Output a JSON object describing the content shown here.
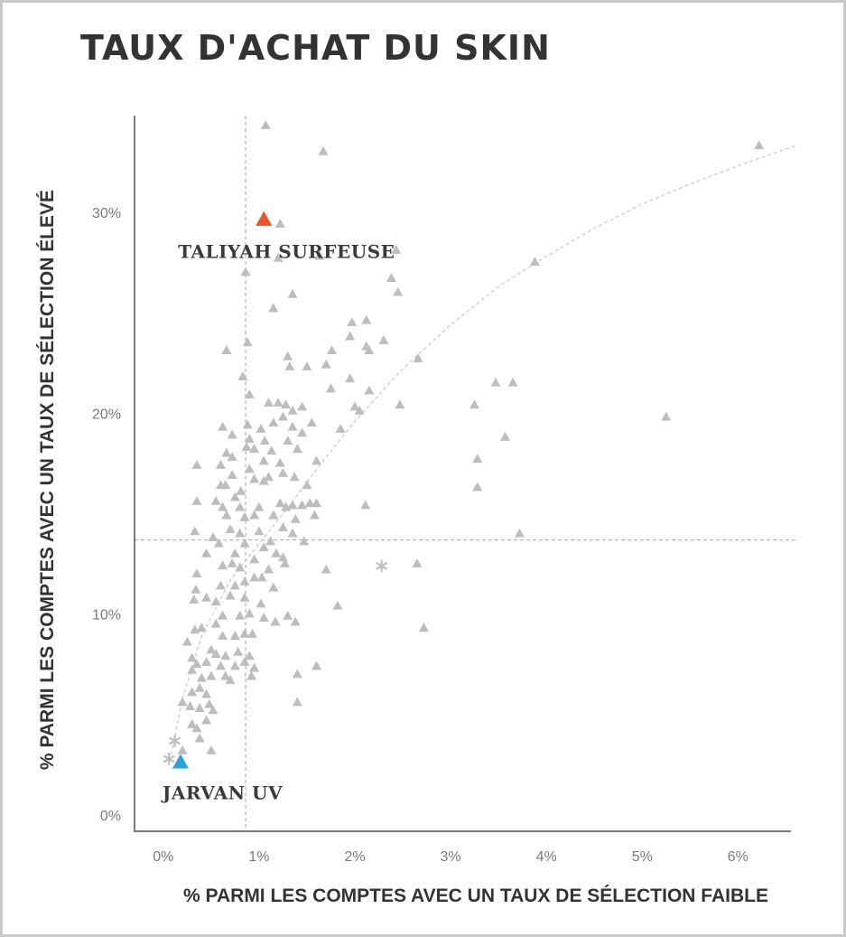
{
  "chart_data": {
    "type": "scatter",
    "title": "TAUX D'ACHAT DU SKIN",
    "xlabel": "% PARMI LES COMPTES AVEC UN TAUX DE SÉLECTION FAIBLE",
    "ylabel": "% PARMI LES COMPTES AVEC UN TAUX DE SÉLECTION ÉLEVÉ",
    "xlim": [
      -0.3,
      6.6
    ],
    "ylim": [
      -0.8,
      34.8
    ],
    "x_ticks": [
      0,
      1,
      2,
      3,
      4,
      5,
      6
    ],
    "x_tick_labels": [
      "0%",
      "1%",
      "2%",
      "3%",
      "4%",
      "5%",
      "6%"
    ],
    "y_ticks": [
      0,
      10,
      20,
      30
    ],
    "y_tick_labels": [
      "0%",
      "10%",
      "20%",
      "30%"
    ],
    "reference_lines": {
      "x": 0.86,
      "y": 13.7
    },
    "trend_curve": {
      "style": "dashed",
      "color": "#cccccc",
      "points": [
        [
          0.07,
          2.7
        ],
        [
          0.2,
          5.8
        ],
        [
          0.4,
          8.9
        ],
        [
          0.7,
          11.7
        ],
        [
          1.0,
          13.5
        ],
        [
          1.3,
          15.3
        ],
        [
          1.6,
          17.2
        ],
        [
          2.0,
          19.6
        ],
        [
          2.5,
          22.2
        ],
        [
          3.0,
          24.4
        ],
        [
          3.5,
          26.3
        ],
        [
          4.0,
          27.8
        ],
        [
          4.5,
          29.2
        ],
        [
          5.0,
          30.4
        ],
        [
          5.5,
          31.4
        ],
        [
          6.0,
          32.3
        ],
        [
          6.6,
          33.3
        ]
      ]
    },
    "grid": false,
    "colors": {
      "points": "#bdbdbd",
      "highlight_high": "#e8562a",
      "highlight_low": "#29a3d6",
      "axis": "#7a7a7a",
      "reference": "#b5b5b5"
    },
    "series": [
      {
        "marker": "triangle",
        "points": [
          [
            1.07,
            34.3
          ],
          [
            1.67,
            33.0
          ],
          [
            6.22,
            33.3
          ],
          [
            1.22,
            29.4
          ],
          [
            1.2,
            27.7
          ],
          [
            1.63,
            27.8
          ],
          [
            2.43,
            28.1
          ],
          [
            3.88,
            27.5
          ],
          [
            0.86,
            27.0
          ],
          [
            2.38,
            26.7
          ],
          [
            2.45,
            26.0
          ],
          [
            1.35,
            25.9
          ],
          [
            1.15,
            25.2
          ],
          [
            1.97,
            24.5
          ],
          [
            2.12,
            24.6
          ],
          [
            1.95,
            23.8
          ],
          [
            2.3,
            23.6
          ],
          [
            0.66,
            23.1
          ],
          [
            1.76,
            23.1
          ],
          [
            2.12,
            23.3
          ],
          [
            2.15,
            23.1
          ],
          [
            0.88,
            23.5
          ],
          [
            1.3,
            22.8
          ],
          [
            1.7,
            22.4
          ],
          [
            1.32,
            22.3
          ],
          [
            1.5,
            22.3
          ],
          [
            2.66,
            22.7
          ],
          [
            0.83,
            21.8
          ],
          [
            1.95,
            21.7
          ],
          [
            1.75,
            21.2
          ],
          [
            3.47,
            21.5
          ],
          [
            3.65,
            21.5
          ],
          [
            2.15,
            21.1
          ],
          [
            0.9,
            20.9
          ],
          [
            1.1,
            20.5
          ],
          [
            1.2,
            20.5
          ],
          [
            1.28,
            20.4
          ],
          [
            1.35,
            20.1
          ],
          [
            1.45,
            20.3
          ],
          [
            1.25,
            19.8
          ],
          [
            2.0,
            20.3
          ],
          [
            2.05,
            20.1
          ],
          [
            2.47,
            20.4
          ],
          [
            3.25,
            20.4
          ],
          [
            5.25,
            19.8
          ],
          [
            1.15,
            19.5
          ],
          [
            1.55,
            19.5
          ],
          [
            0.62,
            19.3
          ],
          [
            0.88,
            19.4
          ],
          [
            1.02,
            19.2
          ],
          [
            1.35,
            19.3
          ],
          [
            1.45,
            19.0
          ],
          [
            1.85,
            19.2
          ],
          [
            0.72,
            18.9
          ],
          [
            0.9,
            18.7
          ],
          [
            1.06,
            18.6
          ],
          [
            1.3,
            18.6
          ],
          [
            3.57,
            18.8
          ],
          [
            0.87,
            18.3
          ],
          [
            0.95,
            18.2
          ],
          [
            1.13,
            18.1
          ],
          [
            1.4,
            18.2
          ],
          [
            0.66,
            18.0
          ],
          [
            0.72,
            17.8
          ],
          [
            1.22,
            17.5
          ],
          [
            1.05,
            17.6
          ],
          [
            3.28,
            17.7
          ],
          [
            0.6,
            17.4
          ],
          [
            1.6,
            17.6
          ],
          [
            0.9,
            17.2
          ],
          [
            1.25,
            17.0
          ],
          [
            0.35,
            17.4
          ],
          [
            0.72,
            16.9
          ],
          [
            0.95,
            16.7
          ],
          [
            1.1,
            16.8
          ],
          [
            1.37,
            16.8
          ],
          [
            1.5,
            16.4
          ],
          [
            0.6,
            16.4
          ],
          [
            0.65,
            16.4
          ],
          [
            0.81,
            16.1
          ],
          [
            1.05,
            16.6
          ],
          [
            3.28,
            16.3
          ],
          [
            0.75,
            15.8
          ],
          [
            1.22,
            15.5
          ],
          [
            1.35,
            15.4
          ],
          [
            1.45,
            15.4
          ],
          [
            1.53,
            15.5
          ],
          [
            1.6,
            15.5
          ],
          [
            0.35,
            15.6
          ],
          [
            0.55,
            15.6
          ],
          [
            0.62,
            15.3
          ],
          [
            0.8,
            15.3
          ],
          [
            1.0,
            15.3
          ],
          [
            1.15,
            14.9
          ],
          [
            1.28,
            15.3
          ],
          [
            2.11,
            15.4
          ],
          [
            0.66,
            14.9
          ],
          [
            0.85,
            14.8
          ],
          [
            0.95,
            14.9
          ],
          [
            1.38,
            14.7
          ],
          [
            1.58,
            14.9
          ],
          [
            0.7,
            14.2
          ],
          [
            0.8,
            14.0
          ],
          [
            1.0,
            14.1
          ],
          [
            1.25,
            14.3
          ],
          [
            1.35,
            14.0
          ],
          [
            3.72,
            14.0
          ],
          [
            0.33,
            14.1
          ],
          [
            0.52,
            13.8
          ],
          [
            0.58,
            13.5
          ],
          [
            0.85,
            13.5
          ],
          [
            1.05,
            13.3
          ],
          [
            1.12,
            13.6
          ],
          [
            1.47,
            13.6
          ],
          [
            0.45,
            13.0
          ],
          [
            0.75,
            13.0
          ],
          [
            0.95,
            12.7
          ],
          [
            1.18,
            13.0
          ],
          [
            1.25,
            12.8
          ],
          [
            0.35,
            12.0
          ],
          [
            0.62,
            12.4
          ],
          [
            0.72,
            12.5
          ],
          [
            0.8,
            12.3
          ],
          [
            1.1,
            12.2
          ],
          [
            1.27,
            12.5
          ],
          [
            1.7,
            12.2
          ],
          [
            2.65,
            12.5
          ],
          [
            0.6,
            11.4
          ],
          [
            0.75,
            11.4
          ],
          [
            0.85,
            11.6
          ],
          [
            0.95,
            11.8
          ],
          [
            1.03,
            11.8
          ],
          [
            1.15,
            11.3
          ],
          [
            0.34,
            11.2
          ],
          [
            0.45,
            10.8
          ],
          [
            0.55,
            10.6
          ],
          [
            0.7,
            10.9
          ],
          [
            0.85,
            10.8
          ],
          [
            1.02,
            10.5
          ],
          [
            1.82,
            10.4
          ],
          [
            0.32,
            10.7
          ],
          [
            0.62,
            9.9
          ],
          [
            0.8,
            9.9
          ],
          [
            0.9,
            10.0
          ],
          [
            1.05,
            9.8
          ],
          [
            1.17,
            9.6
          ],
          [
            1.3,
            9.9
          ],
          [
            1.38,
            9.6
          ],
          [
            0.33,
            9.2
          ],
          [
            0.4,
            9.3
          ],
          [
            0.55,
            9.5
          ],
          [
            0.62,
            8.9
          ],
          [
            0.75,
            8.9
          ],
          [
            0.85,
            9.0
          ],
          [
            0.93,
            9.0
          ],
          [
            0.25,
            8.6
          ],
          [
            0.5,
            8.2
          ],
          [
            0.55,
            8.0
          ],
          [
            0.65,
            7.9
          ],
          [
            0.78,
            8.1
          ],
          [
            0.9,
            7.9
          ],
          [
            0.3,
            7.8
          ],
          [
            0.35,
            7.5
          ],
          [
            0.45,
            7.6
          ],
          [
            0.6,
            7.4
          ],
          [
            0.75,
            7.4
          ],
          [
            0.85,
            7.6
          ],
          [
            0.95,
            7.3
          ],
          [
            1.6,
            7.4
          ],
          [
            0.3,
            7.2
          ],
          [
            0.4,
            6.8
          ],
          [
            0.5,
            6.9
          ],
          [
            0.65,
            6.9
          ],
          [
            0.7,
            6.7
          ],
          [
            0.92,
            6.9
          ],
          [
            1.4,
            7.0
          ],
          [
            0.3,
            6.1
          ],
          [
            0.38,
            6.3
          ],
          [
            0.45,
            6.0
          ],
          [
            0.28,
            5.4
          ],
          [
            0.38,
            5.3
          ],
          [
            0.48,
            5.5
          ],
          [
            0.52,
            5.2
          ],
          [
            0.2,
            5.6
          ],
          [
            1.4,
            5.6
          ],
          [
            0.3,
            4.5
          ],
          [
            0.45,
            4.7
          ],
          [
            0.35,
            4.3
          ],
          [
            0.38,
            3.8
          ],
          [
            0.5,
            3.2
          ],
          [
            0.2,
            3.2
          ],
          [
            2.72,
            9.3
          ]
        ]
      },
      {
        "marker": "asterisk",
        "points": [
          [
            2.28,
            12.4
          ],
          [
            0.12,
            3.7
          ],
          [
            0.06,
            2.8
          ]
        ]
      }
    ],
    "highlights": [
      {
        "label": "TALIYAH SURFEUSE",
        "x": 1.05,
        "y": 29.6,
        "color": "#e8562a"
      },
      {
        "label": "JARVAN UV",
        "x": 0.18,
        "y": 2.6,
        "color": "#29a3d6"
      }
    ]
  }
}
